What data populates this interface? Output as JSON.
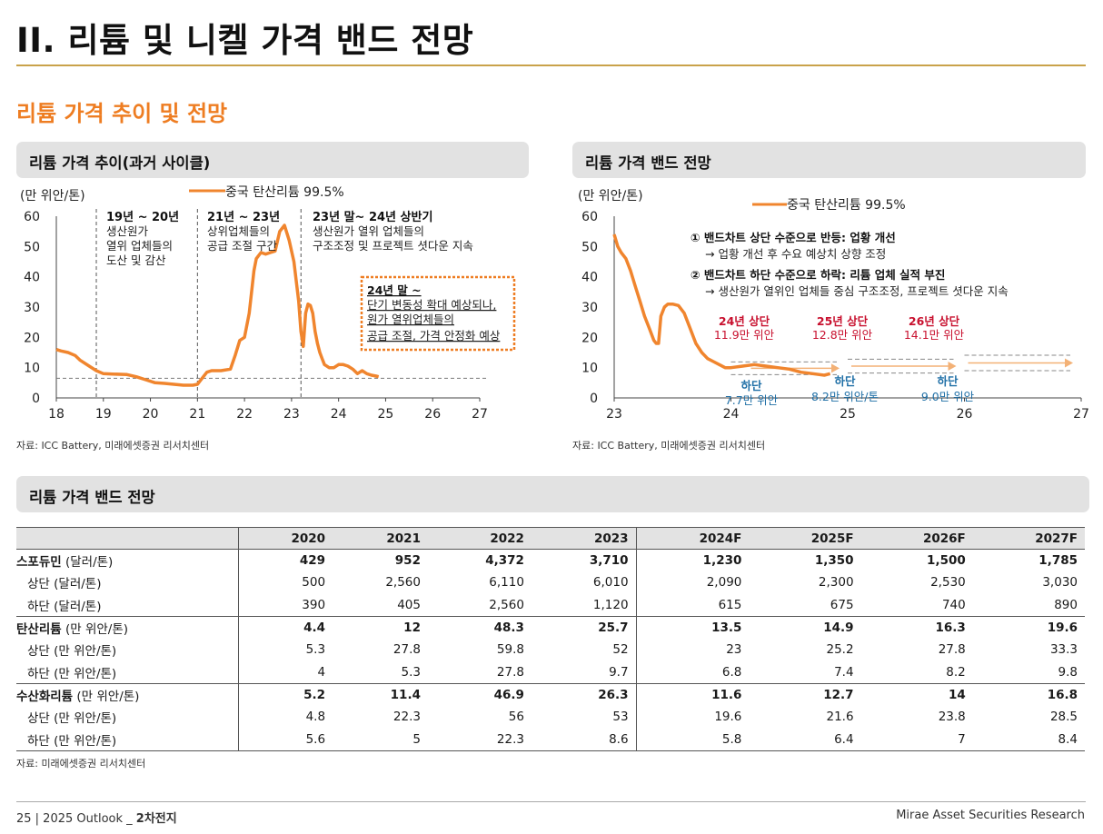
{
  "page": {
    "title": "II. 리튬 및 니켈 가격 밴드 전망",
    "section_title": "리튬 가격 추이 및 전망"
  },
  "left_chart": {
    "panel_title": "리튬 가격 추이(과거 사이클)",
    "unit": "(만 위안/톤)",
    "legend": "중국 탄산리튬 99.5%",
    "y_ticks": [
      "0",
      "10",
      "20",
      "30",
      "40",
      "50",
      "60"
    ],
    "x_ticks": [
      "18",
      "19",
      "20",
      "21",
      "22",
      "23",
      "24",
      "25",
      "26",
      "27"
    ],
    "phase1": {
      "title": "19년 ~ 20년",
      "lines": [
        "생산원가",
        "열위 업체들의",
        "도산 및 감산"
      ]
    },
    "phase2": {
      "title": "21년 ~ 23년",
      "lines": [
        "상위업체들의",
        "공급 조절 구간"
      ]
    },
    "phase3": {
      "title": "23년 말~ 24년 상반기",
      "lines": [
        "생산원가 열위 업체들의",
        "구조조정 및 프로젝트 셧다운 지속"
      ]
    },
    "callout": {
      "title": "24년 말 ~",
      "lines": [
        "단기 변동성 확대 예상되나,",
        "원가 열위업체들의",
        "공급 조절, 가격 안정화 예상"
      ]
    },
    "source": "자료: ICC Battery, 미래에셋증권 리서치센터"
  },
  "right_chart": {
    "panel_title": "리튬 가격 밴드 전망",
    "unit": "(만 위안/톤)",
    "legend": "중국 탄산리튬 99.5%",
    "y_ticks": [
      "0",
      "10",
      "20",
      "30",
      "40",
      "50",
      "60"
    ],
    "x_ticks": [
      "23",
      "24",
      "25",
      "26",
      "27"
    ],
    "note1_title": "① 밴드차트 상단 수준으로 반등: 업황 개선",
    "note1_sub": "→ 업황 개선 후 수요 예상치 상향 조정",
    "note2_title": "② 밴드차트 하단 수준으로 하락: 리튬 업체 실적 부진",
    "note2_sub": "→ 생산원가 열위인 업체들 중심 구조조정, 프로젝트 셧다운 지속",
    "upper": [
      {
        "label": "24년 상단",
        "value": "11.9만 위안"
      },
      {
        "label": "25년 상단",
        "value": "12.8만 위안"
      },
      {
        "label": "26년 상단",
        "value": "14.1만 위안"
      }
    ],
    "lower": [
      {
        "label": "하단",
        "value": "7.7만 위안"
      },
      {
        "label": "하단",
        "value": "8.2만 위안/톤"
      },
      {
        "label": "하단",
        "value": "9.0만 위안"
      }
    ],
    "source": "자료: ICC Battery, 미래에셋증권 리서치센터"
  },
  "chart_data": [
    {
      "type": "line",
      "title": "리튬 가격 추이(과거 사이클)",
      "ylabel": "(만 위안/톤)",
      "ylim": [
        0,
        60
      ],
      "xlim": [
        18,
        27
      ],
      "series": [
        {
          "name": "중국 탄산리튬 99.5%",
          "x": [
            18.0,
            18.1,
            18.25,
            18.4,
            18.5,
            18.7,
            18.85,
            19.0,
            19.2,
            19.5,
            19.7,
            19.9,
            20.1,
            20.3,
            20.5,
            20.7,
            20.9,
            21.0,
            21.1,
            21.2,
            21.3,
            21.5,
            21.7,
            21.8,
            21.9,
            22.0,
            22.1,
            22.2,
            22.25,
            22.35,
            22.45,
            22.55,
            22.65,
            22.75,
            22.85,
            22.95,
            23.05,
            23.15,
            23.2,
            23.25,
            23.3,
            23.35,
            23.4,
            23.45,
            23.5,
            23.55,
            23.6,
            23.65,
            23.7,
            23.8,
            23.9,
            24.0,
            24.1,
            24.2,
            24.3,
            24.4,
            24.5,
            24.6,
            24.7,
            24.8,
            24.85
          ],
          "y": [
            16,
            15.5,
            15,
            14,
            12.5,
            10.5,
            9,
            8,
            7.9,
            7.7,
            7,
            6,
            5,
            4.8,
            4.5,
            4.2,
            4.2,
            4.5,
            6.5,
            8.5,
            9,
            9,
            9.5,
            14,
            19,
            20,
            28,
            42,
            46,
            48,
            47.5,
            48,
            48.5,
            55,
            57,
            52,
            45,
            32,
            22,
            17,
            28,
            31,
            30.5,
            28,
            22,
            18,
            15,
            13,
            11,
            10,
            10,
            11,
            11,
            10.5,
            9.5,
            8,
            9,
            8,
            7.5,
            7.2,
            7
          ]
        }
      ],
      "reference_line": {
        "y": 6.5
      },
      "phase_dividers_x": [
        18.85,
        21.0,
        23.2
      ]
    },
    {
      "type": "line",
      "title": "리튬 가격 밴드 전망",
      "ylabel": "(만 위안/톤)",
      "ylim": [
        0,
        60
      ],
      "xlim": [
        23,
        27
      ],
      "series": [
        {
          "name": "중국 탄산리튬 99.5%",
          "x": [
            23.0,
            23.03,
            23.06,
            23.1,
            23.14,
            23.18,
            23.22,
            23.26,
            23.3,
            23.34,
            23.36,
            23.38,
            23.4,
            23.43,
            23.46,
            23.5,
            23.55,
            23.6,
            23.65,
            23.7,
            23.75,
            23.8,
            23.85,
            23.9,
            23.95,
            24.0,
            24.1,
            24.2,
            24.3,
            24.4,
            24.5,
            24.6,
            24.7,
            24.8,
            24.85
          ],
          "y": [
            54,
            50,
            48,
            46,
            42,
            37,
            32,
            27,
            23,
            19,
            18,
            18,
            27,
            30,
            31,
            31,
            30.5,
            28,
            23,
            18,
            15,
            13,
            12,
            11,
            10,
            10,
            10.5,
            11,
            10.5,
            10,
            9.5,
            8.5,
            8,
            7.5,
            8
          ]
        }
      ],
      "bands": [
        {
          "year": "24년",
          "upper": 11.9,
          "lower": 7.7
        },
        {
          "year": "25년",
          "upper": 12.8,
          "lower": 8.2
        },
        {
          "year": "26년",
          "upper": 14.1,
          "lower": 9.0
        }
      ]
    }
  ],
  "table": {
    "panel_title": "리튬 가격 밴드 전망",
    "columns": [
      "2020",
      "2021",
      "2022",
      "2023",
      "2024F",
      "2025F",
      "2026F",
      "2027F"
    ],
    "rows": [
      {
        "group": true,
        "name": "스포듀민",
        "unit": " (달러/톤)",
        "values": [
          "429",
          "952",
          "4,372",
          "3,710",
          "1,230",
          "1,350",
          "1,500",
          "1,785"
        ]
      },
      {
        "group": false,
        "name": "상단 (달러/톤)",
        "values": [
          "500",
          "2,560",
          "6,110",
          "6,010",
          "2,090",
          "2,300",
          "2,530",
          "3,030"
        ]
      },
      {
        "group": false,
        "name": "하단 (달러/톤)",
        "values": [
          "390",
          "405",
          "2,560",
          "1,120",
          "615",
          "675",
          "740",
          "890"
        ]
      },
      {
        "group": true,
        "name": "탄산리튬",
        "unit": " (만 위안/톤)",
        "values": [
          "4.4",
          "12",
          "48.3",
          "25.7",
          "13.5",
          "14.9",
          "16.3",
          "19.6"
        ]
      },
      {
        "group": false,
        "name": "상단 (만 위안/톤)",
        "values": [
          "5.3",
          "27.8",
          "59.8",
          "52",
          "23",
          "25.2",
          "27.8",
          "33.3"
        ]
      },
      {
        "group": false,
        "name": "하단 (만 위안/톤)",
        "values": [
          "4",
          "5.3",
          "27.8",
          "9.7",
          "6.8",
          "7.4",
          "8.2",
          "9.8"
        ]
      },
      {
        "group": true,
        "name": "수산화리튬",
        "unit": " (만 위안/톤)",
        "values": [
          "5.2",
          "11.4",
          "46.9",
          "26.3",
          "11.6",
          "12.7",
          "14",
          "16.8"
        ]
      },
      {
        "group": false,
        "name": "상단 (만 위안/톤)",
        "values": [
          "4.8",
          "22.3",
          "56",
          "53",
          "19.6",
          "21.6",
          "23.8",
          "28.5"
        ]
      },
      {
        "group": false,
        "name": "하단 (만 위안/톤)",
        "values": [
          "5.6",
          "5",
          "22.3",
          "8.6",
          "5.8",
          "6.4",
          "7",
          "8.4"
        ]
      }
    ],
    "source": "자료: 미래에셋증권 리서치센터"
  },
  "footer": {
    "left": "25 | 2025 Outlook _ ",
    "left_bold": "2차전지",
    "right": "Mirae Asset Securities Research"
  },
  "colors": {
    "accent": "#ee7d22",
    "series": "#f0852e",
    "band_upper": "#c8102e",
    "band_lower": "#1f6fa6",
    "rule": "#c9a24a"
  }
}
